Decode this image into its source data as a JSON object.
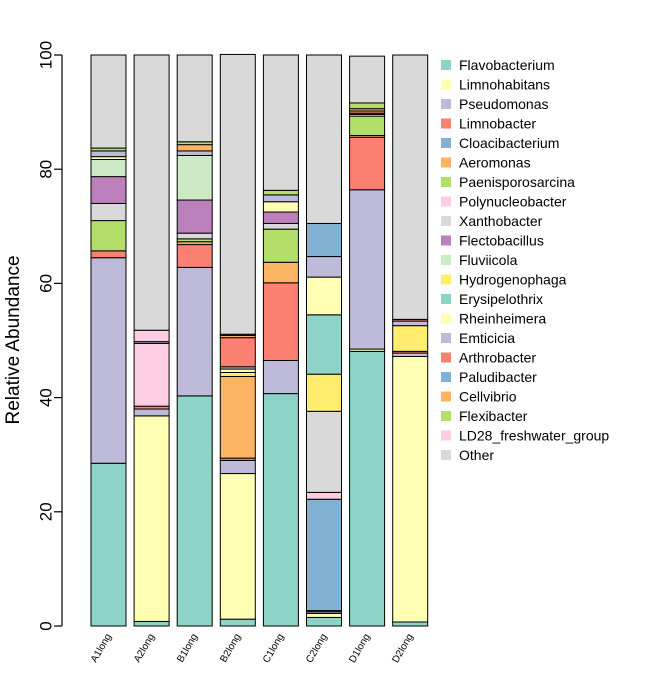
{
  "chart_data": {
    "type": "bar",
    "stacked": true,
    "title": "",
    "xlabel": "",
    "ylabel": "Relative Abundance",
    "ylim": [
      0,
      100
    ],
    "yticks": [
      0,
      20,
      40,
      60,
      80,
      100
    ],
    "grid": false,
    "legend_position": "right",
    "categories": [
      "A1long",
      "A2long",
      "B1long",
      "B2long",
      "C1long",
      "C2long",
      "D1long",
      "D2long"
    ],
    "series": [
      {
        "name": "Flavobacterium",
        "color": "#8DD3C7",
        "values": [
          28.5,
          0.8,
          40.3,
          1.2,
          40.7,
          1.5,
          48.1,
          0.7
        ]
      },
      {
        "name": "Limnohabitans",
        "color": "#FFFFB3",
        "values": [
          0,
          36.0,
          0,
          25.5,
          0,
          0.7,
          0.4,
          46.5
        ]
      },
      {
        "name": "Pseudomonas",
        "color": "#BEBADA",
        "values": [
          36.0,
          1.2,
          22.5,
          2.3,
          5.8,
          0.3,
          27.9,
          0.6
        ]
      },
      {
        "name": "Limnobacter",
        "color": "#FB8072",
        "values": [
          1.2,
          0.5,
          4.0,
          0.4,
          13.6,
          0.2,
          9.2,
          0.3
        ]
      },
      {
        "name": "Cloacibacterium",
        "color": "#80B1D3",
        "values": [
          0,
          0,
          0,
          0,
          0,
          19.5,
          0,
          0
        ]
      },
      {
        "name": "Aeromonas",
        "color": "#FDB462",
        "values": [
          0,
          0,
          0.5,
          14.3,
          3.6,
          0,
          0.3,
          0
        ]
      },
      {
        "name": "Paenisporosarcina",
        "color": "#B3DE69",
        "values": [
          5.3,
          0,
          0.5,
          0,
          5.8,
          0,
          3.4,
          0
        ]
      },
      {
        "name": "Polynucleobacter",
        "color": "#FCCDE5",
        "values": [
          0,
          11.0,
          0,
          0,
          0,
          1.2,
          0,
          0
        ]
      },
      {
        "name": "Xanthobacter",
        "color": "#D9D9D9",
        "values": [
          3.0,
          0,
          1.0,
          0,
          1.0,
          14.2,
          0,
          0
        ]
      },
      {
        "name": "Flectobacillus",
        "color": "#BC80BD",
        "values": [
          4.7,
          0,
          5.8,
          0,
          2.0,
          0,
          0,
          0
        ]
      },
      {
        "name": "Fluviicola",
        "color": "#CCEBC5",
        "values": [
          3.0,
          0,
          7.8,
          0,
          0,
          0,
          0,
          0
        ]
      },
      {
        "name": "Hydrogenophaga",
        "color": "#FFED6F",
        "values": [
          0,
          0,
          0,
          0.7,
          0,
          6.5,
          0,
          4.5
        ]
      },
      {
        "name": "Erysipelothrix",
        "color": "#8DD3C7",
        "values": [
          0,
          0,
          0,
          0,
          0,
          10.4,
          0,
          0
        ]
      },
      {
        "name": "Rheinheimera",
        "color": "#FFFFB3",
        "values": [
          0.5,
          0,
          0,
          0.6,
          1.8,
          6.6,
          0.3,
          0
        ]
      },
      {
        "name": "Emticicia",
        "color": "#BEBADA",
        "values": [
          1.0,
          0.3,
          0.8,
          0.4,
          1.2,
          3.6,
          0.2,
          0.8
        ]
      },
      {
        "name": "Arthrobacter",
        "color": "#FB8072",
        "values": [
          0,
          0,
          0,
          5.1,
          0,
          0,
          0.4,
          0.3
        ]
      },
      {
        "name": "Paludibacter",
        "color": "#80B1D3",
        "values": [
          0,
          0,
          0,
          0,
          0,
          5.8,
          0,
          0
        ]
      },
      {
        "name": "Cellvibrio",
        "color": "#FDB462",
        "values": [
          0,
          0,
          1.1,
          0.4,
          0,
          0,
          0.4,
          0
        ]
      },
      {
        "name": "Flexibacter",
        "color": "#B3DE69",
        "values": [
          0.5,
          0,
          0.5,
          0,
          0.8,
          0,
          1.0,
          0
        ]
      },
      {
        "name": "LD28_freshwater_group",
        "color": "#FCCDE5",
        "values": [
          0,
          2.0,
          0,
          0.2,
          0,
          0,
          0,
          0
        ]
      },
      {
        "name": "Other",
        "color": "#D9D9D9",
        "values": [
          16.3,
          48.2,
          15.2,
          49.0,
          23.7,
          29.5,
          8.2,
          46.3
        ]
      }
    ]
  }
}
